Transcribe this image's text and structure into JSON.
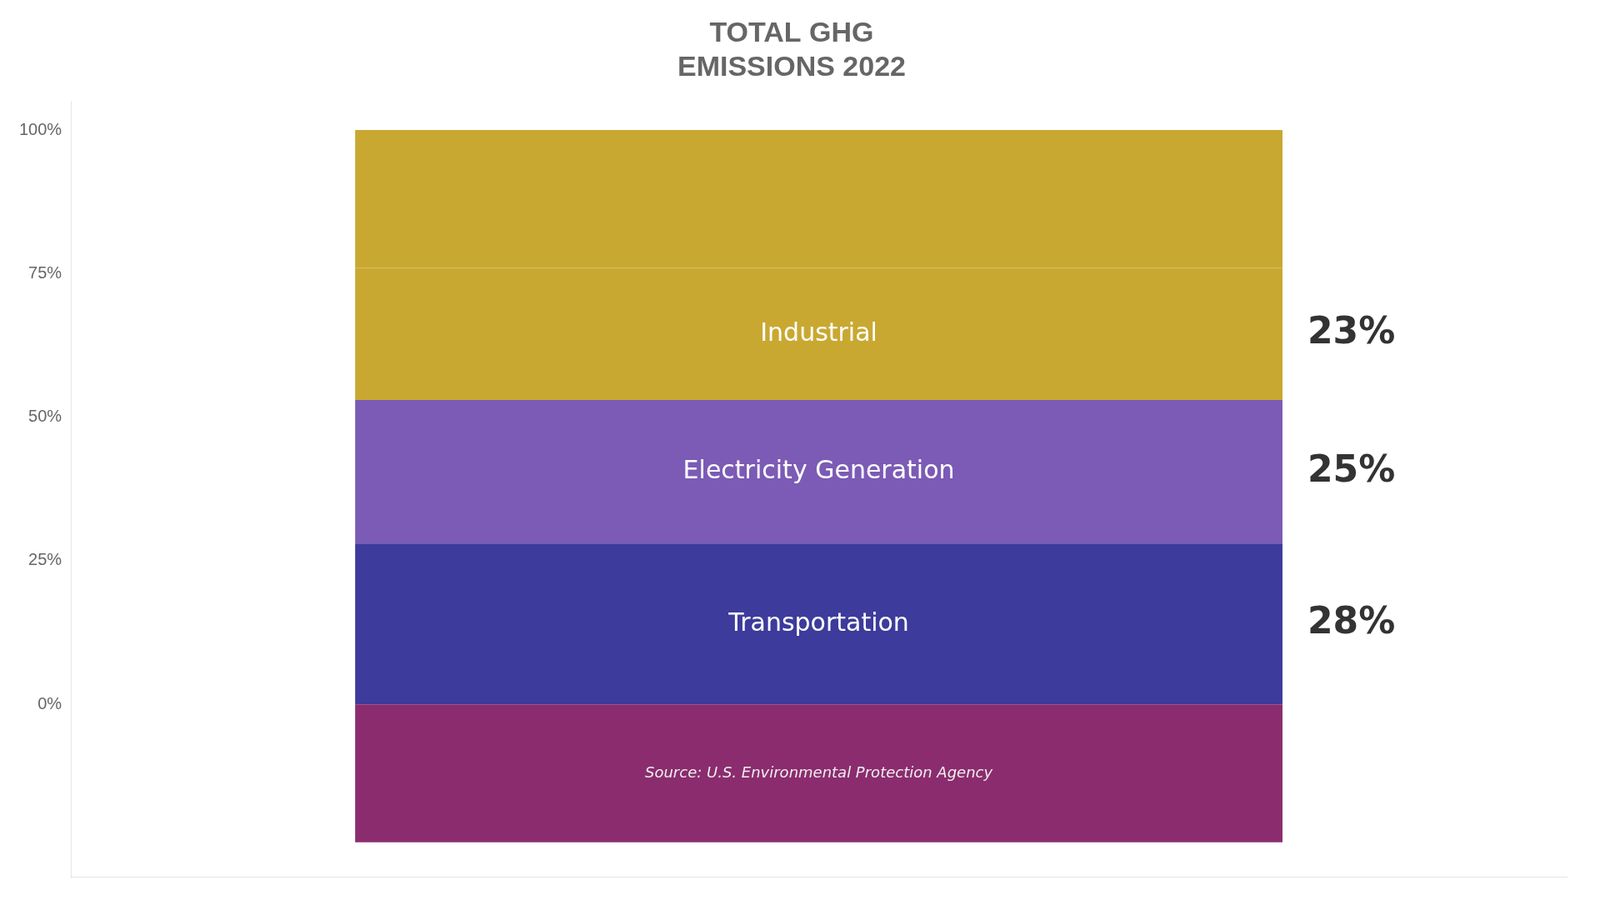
{
  "chart_data": {
    "type": "bar",
    "stacked": true,
    "title": [
      "TOTAL GHG",
      "EMISSIONS 2022"
    ],
    "categories": [
      null
    ],
    "series": [
      {
        "color": "#8B2C6E",
        "values": [
          -24
        ]
      },
      {
        "name": "Transportation",
        "color": "#3D3B9B",
        "values": [
          28
        ],
        "value_labels": [
          "28%"
        ]
      },
      {
        "name": "Electricity Generation",
        "color": "#7B5BB5",
        "values": [
          25
        ],
        "value_labels": [
          "25%"
        ]
      },
      {
        "name": "Industrial",
        "color": "#C9A832",
        "values": [
          23
        ],
        "value_labels": [
          "23%"
        ]
      },
      {
        "color": "#C9A832",
        "values": [
          24
        ]
      }
    ],
    "annotations": [
      "Source: U.S. Environmental Protection Agency"
    ],
    "ylim": [
      -30,
      105
    ],
    "yticks": [
      {
        "value": 0,
        "label": "0%"
      },
      {
        "value": 25,
        "label": "25%"
      },
      {
        "value": 50,
        "label": "50%"
      },
      {
        "value": 75,
        "label": "75%"
      },
      {
        "value": 100,
        "label": "100%"
      }
    ],
    "grid": false,
    "tick_labels": "y",
    "data_labels": true
  }
}
